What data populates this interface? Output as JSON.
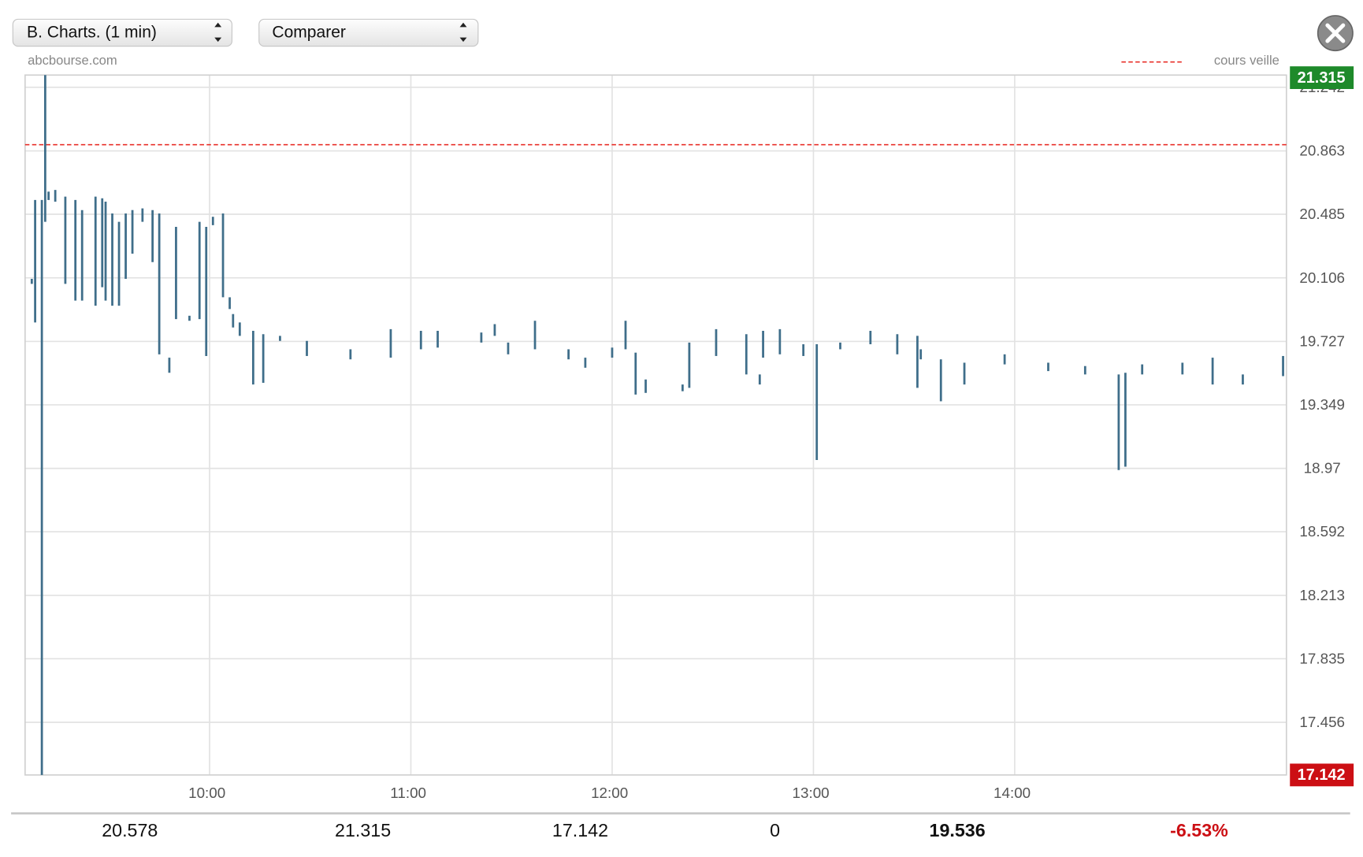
{
  "toolbar": {
    "period_select": "B. Charts. (1 min)",
    "compare_select": "Comparer"
  },
  "chart_data": {
    "type": "range",
    "source": "abcbourse.com",
    "reference_line": {
      "name": "cours veille",
      "value": 20.9,
      "color": "#e8302a"
    },
    "color": "#3f6e8a",
    "grid": true,
    "xlim": [
      "09:05",
      "15:21"
    ],
    "xticks": [
      "10:00",
      "11:00",
      "12:00",
      "13:00",
      "14:00"
    ],
    "ylim": [
      17.142,
      21.315
    ],
    "yticks": [
      17.456,
      17.835,
      18.213,
      18.592,
      18.97,
      19.349,
      19.727,
      20.106,
      20.485,
      20.863,
      21.242
    ],
    "high_label_color": "#1e8a2a",
    "low_label_color": "#cc0f14",
    "x": [
      "09:07",
      "09:08",
      "09:10",
      "09:11",
      "09:12",
      "09:14",
      "09:17",
      "09:20",
      "09:22",
      "09:26",
      "09:28",
      "09:29",
      "09:31",
      "09:33",
      "09:35",
      "09:37",
      "09:40",
      "09:43",
      "09:45",
      "09:48",
      "09:50",
      "09:54",
      "09:57",
      "09:59",
      "10:01",
      "10:04",
      "10:06",
      "10:07",
      "10:09",
      "10:13",
      "10:16",
      "10:21",
      "10:29",
      "10:42",
      "10:54",
      "11:03",
      "11:08",
      "11:21",
      "11:25",
      "11:29",
      "11:37",
      "11:47",
      "11:52",
      "12:00",
      "12:04",
      "12:07",
      "12:10",
      "12:21",
      "12:23",
      "12:31",
      "12:40",
      "12:44",
      "12:45",
      "12:50",
      "12:57",
      "13:01",
      "13:08",
      "13:17",
      "13:25",
      "13:31",
      "13:32",
      "13:38",
      "13:45",
      "13:57",
      "14:10",
      "14:21",
      "14:31",
      "14:33",
      "14:38",
      "14:50",
      "14:59",
      "15:08",
      "15:20"
    ],
    "low": [
      20.07,
      19.84,
      17.142,
      20.44,
      20.57,
      20.56,
      20.07,
      19.97,
      19.97,
      19.94,
      20.05,
      19.97,
      19.94,
      19.94,
      20.1,
      20.25,
      20.44,
      20.2,
      19.65,
      19.54,
      19.86,
      19.85,
      19.86,
      19.64,
      20.42,
      19.99,
      19.92,
      19.81,
      19.76,
      19.47,
      19.48,
      19.73,
      19.64,
      19.62,
      19.63,
      19.68,
      19.69,
      19.72,
      19.76,
      19.65,
      19.68,
      19.62,
      19.57,
      19.63,
      19.68,
      19.41,
      19.42,
      19.43,
      19.45,
      19.64,
      19.53,
      19.47,
      19.63,
      19.65,
      19.64,
      19.02,
      19.68,
      19.71,
      19.65,
      19.45,
      19.62,
      19.37,
      19.47,
      19.59,
      19.55,
      19.53,
      18.96,
      18.98,
      19.53,
      19.53,
      19.47,
      19.47,
      19.52
    ],
    "high": [
      20.1,
      20.57,
      20.57,
      21.315,
      20.62,
      20.63,
      20.59,
      20.57,
      20.51,
      20.59,
      20.58,
      20.56,
      20.49,
      20.44,
      20.49,
      20.51,
      20.52,
      20.51,
      20.49,
      19.63,
      20.41,
      19.88,
      20.44,
      20.41,
      20.47,
      20.49,
      19.99,
      19.89,
      19.84,
      19.79,
      19.77,
      19.76,
      19.73,
      19.68,
      19.8,
      19.79,
      19.79,
      19.78,
      19.83,
      19.72,
      19.85,
      19.68,
      19.63,
      19.69,
      19.85,
      19.66,
      19.5,
      19.47,
      19.72,
      19.8,
      19.77,
      19.53,
      19.79,
      19.8,
      19.71,
      19.71,
      19.72,
      19.79,
      19.77,
      19.76,
      19.68,
      19.62,
      19.6,
      19.65,
      19.6,
      19.58,
      19.53,
      19.54,
      19.59,
      19.6,
      19.63,
      19.53,
      19.64
    ]
  },
  "summary": [
    "20.578",
    "21.315",
    "17.142",
    "0",
    "19.536",
    "-6.53%"
  ]
}
